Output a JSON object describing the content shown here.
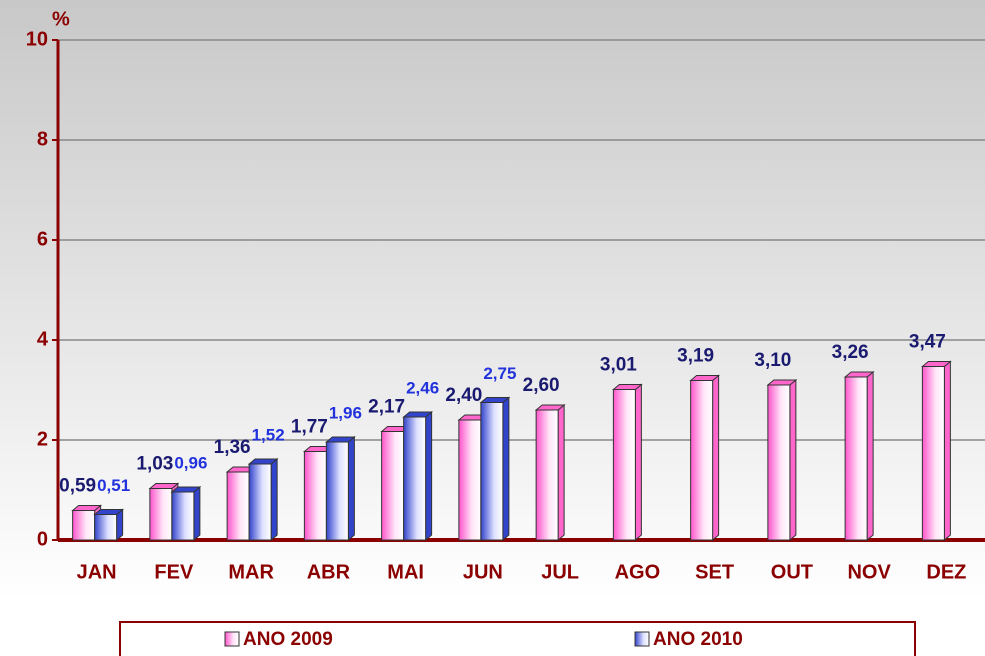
{
  "chart_data": {
    "type": "bar",
    "y_label": "%",
    "categories": [
      "JAN",
      "FEV",
      "MAR",
      "ABR",
      "MAI",
      "JUN",
      "JUL",
      "AGO",
      "SET",
      "OUT",
      "NOV",
      "DEZ"
    ],
    "series": [
      {
        "name": "ANO 2009",
        "color": "#ff66cc",
        "values": [
          0.59,
          1.03,
          1.36,
          1.77,
          2.17,
          2.4,
          2.6,
          3.01,
          3.19,
          3.1,
          3.26,
          3.47
        ],
        "value_labels": [
          "0,59",
          "1,03",
          "1,36",
          "1,77",
          "2,17",
          "2,40",
          "2,60",
          "3,01",
          "3,19",
          "3,10",
          "3,26",
          "3,47"
        ]
      },
      {
        "name": "ANO 2010",
        "color": "#3344cc",
        "values": [
          0.51,
          0.96,
          1.52,
          1.96,
          2.46,
          2.75,
          null,
          null,
          null,
          null,
          null,
          null
        ],
        "value_labels": [
          "0,51",
          "0,96",
          "1,52",
          "1,96",
          "2,46",
          "2,75",
          null,
          null,
          null,
          null,
          null,
          null
        ]
      }
    ],
    "ylim": [
      0,
      10
    ],
    "yticks": [
      0,
      2,
      4,
      6,
      8,
      10
    ],
    "grid": true,
    "legend": "bottom"
  }
}
